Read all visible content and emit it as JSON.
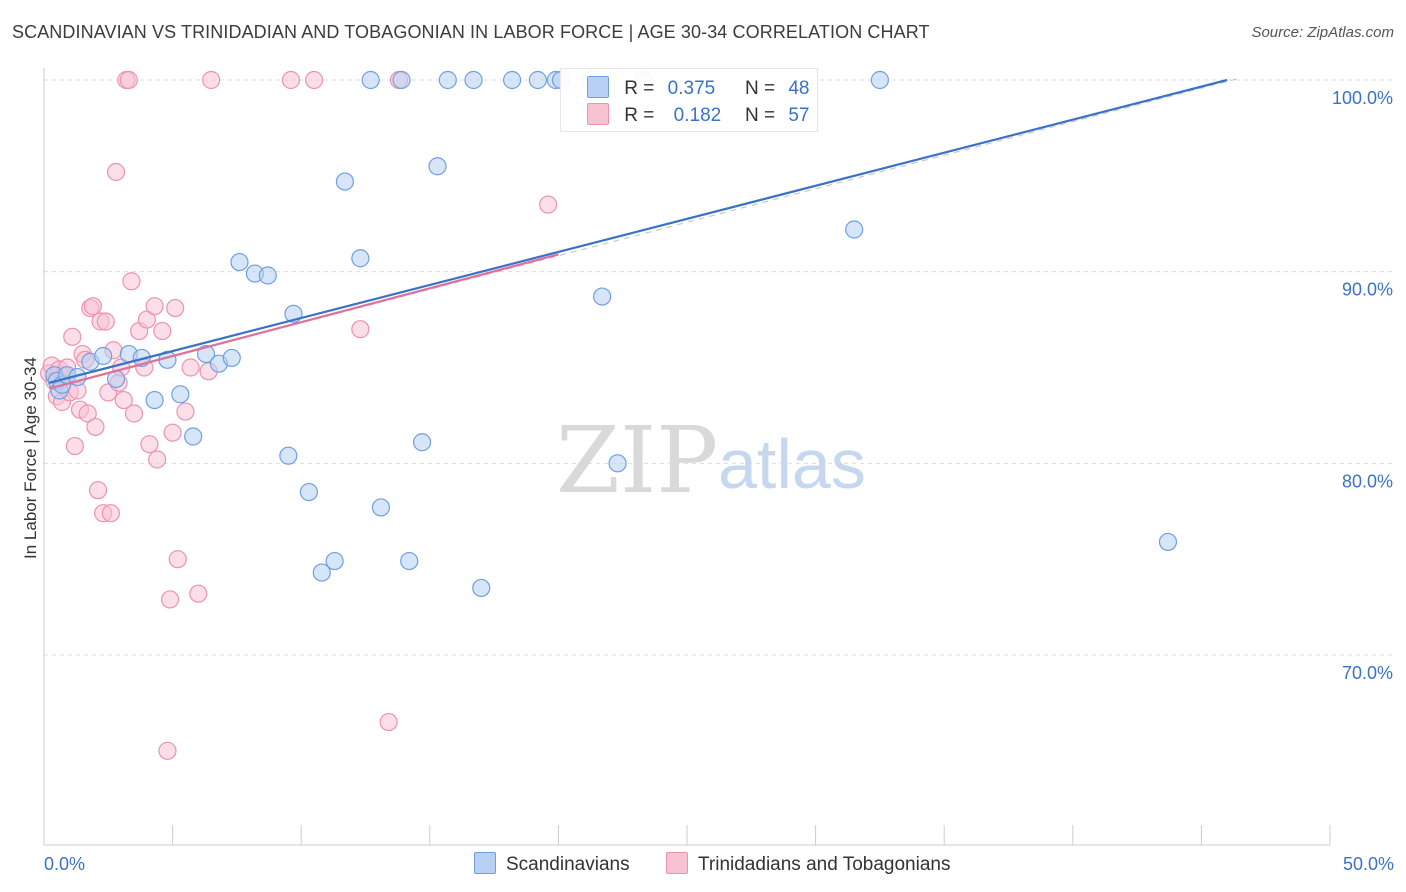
{
  "title": "SCANDINAVIAN VS TRINIDADIAN AND TOBAGONIAN IN LABOR FORCE | AGE 30-34 CORRELATION CHART",
  "source": "Source: ZipAtlas.com",
  "watermark": {
    "zip": "ZIP",
    "atlas": "atlas"
  },
  "colors": {
    "blue_fill": "#b7d0f4",
    "blue_stroke": "#6f9fe0",
    "blue_line": "#3a72c8",
    "pink_fill": "#f7c3d3",
    "pink_stroke": "#ee92ae",
    "pink_line": "#e0709a",
    "axis_label": "#3a72c8",
    "grid": "#dddddd"
  },
  "legend": {
    "rows": [
      {
        "r_label": "R =",
        "r_value": "0.375",
        "n_label": "N =",
        "n_value": "48"
      },
      {
        "r_label": "R =",
        "r_value": "0.182",
        "n_label": "N =",
        "n_value": "57"
      }
    ]
  },
  "bottom_legend": {
    "series1": "Scandinavians",
    "series2": "Trinidadians and Tobagonians"
  },
  "chart_data": {
    "type": "scatter",
    "title": "SCANDINAVIAN VS TRINIDADIAN AND TOBAGONIAN IN LABOR FORCE | AGE 30-34 CORRELATION CHART",
    "xlabel": "",
    "ylabel": "In Labor Force | Age 30-34",
    "xlim": [
      0,
      50
    ],
    "ylim": [
      60,
      101
    ],
    "x_tick_labels": [
      "0.0%",
      "50.0%"
    ],
    "y_ticks": [
      70,
      80,
      90,
      100
    ],
    "y_tick_labels": [
      "70.0%",
      "80.0%",
      "90.0%",
      "100.0%"
    ],
    "grid": true,
    "legend_position": "top-center",
    "series": [
      {
        "name": "Scandinavians",
        "R": 0.375,
        "N": 48,
        "trend": {
          "x": [
            0.2,
            46.0
          ],
          "y": [
            84.2,
            100.0
          ]
        },
        "points": [
          [
            0.4,
            84.6
          ],
          [
            0.5,
            84.3
          ],
          [
            0.6,
            83.8
          ],
          [
            0.7,
            84.1
          ],
          [
            0.9,
            84.6
          ],
          [
            1.3,
            84.5
          ],
          [
            1.8,
            85.3
          ],
          [
            2.3,
            85.6
          ],
          [
            2.8,
            84.4
          ],
          [
            3.3,
            85.7
          ],
          [
            3.8,
            85.5
          ],
          [
            4.3,
            83.3
          ],
          [
            4.8,
            85.4
          ],
          [
            5.3,
            83.6
          ],
          [
            5.8,
            81.4
          ],
          [
            6.3,
            85.7
          ],
          [
            6.8,
            85.2
          ],
          [
            7.3,
            85.5
          ],
          [
            7.6,
            90.5
          ],
          [
            8.2,
            89.9
          ],
          [
            8.7,
            89.8
          ],
          [
            9.5,
            80.4
          ],
          [
            9.7,
            87.8
          ],
          [
            10.3,
            78.5
          ],
          [
            10.8,
            74.3
          ],
          [
            11.3,
            74.9
          ],
          [
            11.7,
            94.7
          ],
          [
            12.3,
            90.7
          ],
          [
            12.7,
            100.0
          ],
          [
            13.1,
            77.7
          ],
          [
            13.9,
            100.0
          ],
          [
            14.2,
            74.9
          ],
          [
            14.7,
            81.1
          ],
          [
            15.3,
            95.5
          ],
          [
            15.7,
            100.0
          ],
          [
            16.7,
            100.0
          ],
          [
            17.0,
            73.5
          ],
          [
            18.2,
            100.0
          ],
          [
            19.2,
            100.0
          ],
          [
            19.9,
            100.0
          ],
          [
            20.1,
            100.0
          ],
          [
            21.3,
            100.0
          ],
          [
            21.7,
            88.7
          ],
          [
            22.3,
            80.0
          ],
          [
            23.3,
            100.0
          ],
          [
            31.5,
            92.2
          ],
          [
            32.5,
            100.0
          ],
          [
            43.7,
            75.9
          ]
        ]
      },
      {
        "name": "Trinidadians and Tobagonians",
        "R": 0.182,
        "N": 57,
        "trend": {
          "x": [
            0.2,
            20.0
          ],
          "y": [
            83.9,
            90.9
          ]
        },
        "points": [
          [
            0.2,
            84.7
          ],
          [
            0.3,
            85.1
          ],
          [
            0.4,
            84.3
          ],
          [
            0.5,
            83.5
          ],
          [
            0.6,
            84.9
          ],
          [
            0.7,
            83.2
          ],
          [
            0.8,
            84.6
          ],
          [
            0.9,
            85.0
          ],
          [
            1.0,
            83.7
          ],
          [
            1.1,
            86.6
          ],
          [
            1.2,
            80.9
          ],
          [
            1.3,
            83.8
          ],
          [
            1.4,
            82.8
          ],
          [
            1.5,
            85.7
          ],
          [
            1.6,
            85.4
          ],
          [
            1.7,
            82.6
          ],
          [
            1.8,
            88.1
          ],
          [
            1.9,
            88.2
          ],
          [
            2.0,
            81.9
          ],
          [
            2.1,
            78.6
          ],
          [
            2.2,
            87.4
          ],
          [
            2.3,
            77.4
          ],
          [
            2.4,
            87.4
          ],
          [
            2.5,
            83.7
          ],
          [
            2.6,
            77.4
          ],
          [
            2.7,
            85.9
          ],
          [
            2.8,
            95.2
          ],
          [
            2.9,
            84.2
          ],
          [
            3.0,
            85.0
          ],
          [
            3.1,
            83.3
          ],
          [
            3.2,
            100.0
          ],
          [
            3.3,
            100.0
          ],
          [
            3.4,
            89.5
          ],
          [
            3.5,
            82.6
          ],
          [
            3.7,
            86.9
          ],
          [
            3.9,
            85.0
          ],
          [
            4.0,
            87.5
          ],
          [
            4.1,
            81.0
          ],
          [
            4.3,
            88.2
          ],
          [
            4.4,
            80.2
          ],
          [
            4.6,
            86.9
          ],
          [
            4.8,
            65.0
          ],
          [
            4.9,
            72.9
          ],
          [
            5.0,
            81.6
          ],
          [
            5.1,
            88.1
          ],
          [
            5.2,
            75.0
          ],
          [
            5.5,
            82.7
          ],
          [
            5.7,
            85.0
          ],
          [
            6.0,
            73.2
          ],
          [
            6.4,
            84.8
          ],
          [
            6.5,
            100.0
          ],
          [
            9.6,
            100.0
          ],
          [
            10.5,
            100.0
          ],
          [
            12.3,
            87.0
          ],
          [
            13.4,
            66.5
          ],
          [
            13.8,
            100.0
          ],
          [
            19.6,
            93.5
          ]
        ]
      }
    ]
  }
}
